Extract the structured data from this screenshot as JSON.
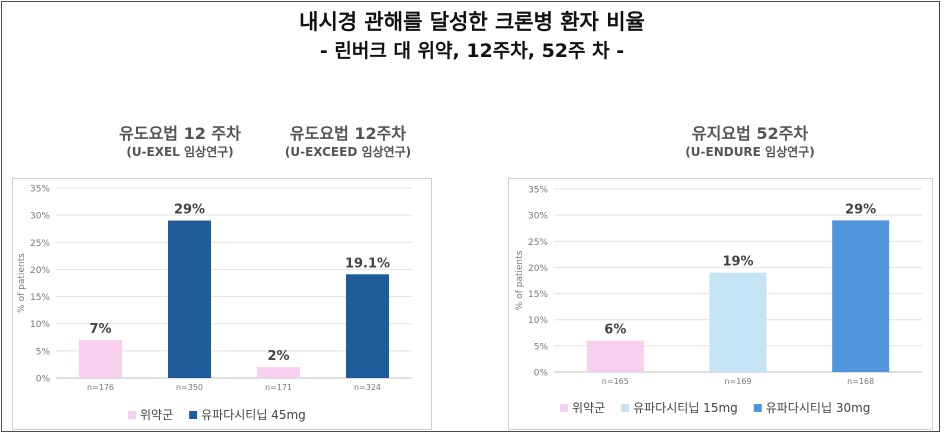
{
  "header": {
    "title": "내시경 관해를 달성한 크론병 환자 비율",
    "subtitle": "- 린버크 대  위약, 12주차, 52주 차 -"
  },
  "panels": {
    "exel": {
      "title": "유도요법 12 주차",
      "study": "(U-EXEL 임상연구)"
    },
    "exceed": {
      "title": "유도요법 12주차",
      "study": "(U-EXCEED 임상연구)"
    },
    "endure": {
      "title": "유지요법 52주차",
      "study": "(U-ENDURE 임상연구)"
    }
  },
  "chart_data": [
    {
      "type": "bar",
      "ylabel": "% of patients",
      "ylim": [
        0,
        35
      ],
      "yticks": [
        "0%",
        "5%",
        "10%",
        "15%",
        "20%",
        "25%",
        "30%",
        "35%"
      ],
      "categories": [
        "n=176",
        "n=350",
        "n=171",
        "n=324"
      ],
      "values": [
        7,
        29,
        2,
        19.1
      ],
      "data_labels": [
        "7%",
        "29%",
        "2%",
        "19.1%"
      ],
      "bar_series": [
        "위약군",
        "유파다시티닙 45mg",
        "위약군",
        "유파다시티닙 45mg"
      ],
      "legend": [
        {
          "name": "위약군",
          "color": "#f6d0ee"
        },
        {
          "name": "유파다시티닙 45mg",
          "color": "#1f5c99"
        }
      ],
      "grid": true,
      "legend_position": "bottom-left"
    },
    {
      "type": "bar",
      "ylabel": "% of patients",
      "ylim": [
        0,
        35
      ],
      "yticks": [
        "0%",
        "5%",
        "10%",
        "15%",
        "20%",
        "25%",
        "30%",
        "35%"
      ],
      "categories": [
        "n=165",
        "n=169",
        "n=168"
      ],
      "values": [
        6,
        19,
        29
      ],
      "data_labels": [
        "6%",
        "19%",
        "29%"
      ],
      "bar_series": [
        "위약군",
        "유파다시티닙 15mg",
        "유파다시티닙 30mg"
      ],
      "legend": [
        {
          "name": "위약군",
          "color": "#f6d0ee"
        },
        {
          "name": "유파다시티닙 15mg",
          "color": "#c4e4f6"
        },
        {
          "name": "유파다시티닙 30mg",
          "color": "#4f96dc"
        }
      ],
      "grid": true,
      "legend_position": "bottom-left"
    }
  ]
}
